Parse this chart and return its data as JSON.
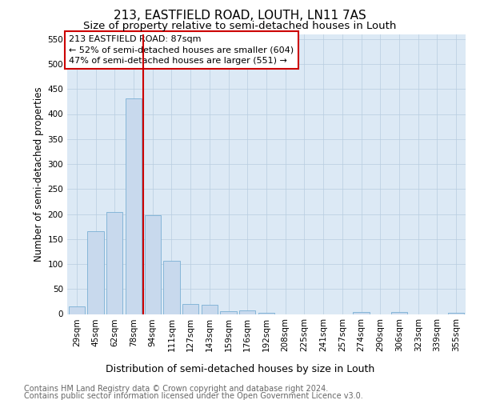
{
  "title": "213, EASTFIELD ROAD, LOUTH, LN11 7AS",
  "subtitle": "Size of property relative to semi-detached houses in Louth",
  "xlabel": "Distribution of semi-detached houses by size in Louth",
  "ylabel": "Number of semi-detached properties",
  "footnote1": "Contains HM Land Registry data © Crown copyright and database right 2024.",
  "footnote2": "Contains public sector information licensed under the Open Government Licence v3.0.",
  "annotation_title": "213 EASTFIELD ROAD: 87sqm",
  "annotation_line1": "← 52% of semi-detached houses are smaller (604)",
  "annotation_line2": "47% of semi-detached houses are larger (551) →",
  "bar_labels": [
    "29sqm",
    "45sqm",
    "62sqm",
    "78sqm",
    "94sqm",
    "111sqm",
    "127sqm",
    "143sqm",
    "159sqm",
    "176sqm",
    "192sqm",
    "208sqm",
    "225sqm",
    "241sqm",
    "257sqm",
    "274sqm",
    "290sqm",
    "306sqm",
    "323sqm",
    "339sqm",
    "355sqm"
  ],
  "bar_values": [
    15,
    165,
    204,
    432,
    197,
    106,
    20,
    18,
    5,
    7,
    2,
    0,
    0,
    0,
    0,
    4,
    0,
    4,
    0,
    0,
    3
  ],
  "bar_color": "#c8d9ed",
  "bar_edge_color": "#7aafd4",
  "vline_color": "#cc0000",
  "vline_x": 3.5,
  "ylim": [
    0,
    560
  ],
  "yticks": [
    0,
    50,
    100,
    150,
    200,
    250,
    300,
    350,
    400,
    450,
    500,
    550
  ],
  "ax_bg_color": "#dce9f5",
  "annotation_box_facecolor": "#ffffff",
  "annotation_box_edgecolor": "#cc0000",
  "background_color": "#ffffff",
  "grid_color": "#b8cde0",
  "title_fontsize": 11,
  "subtitle_fontsize": 9.5,
  "ylabel_fontsize": 8.5,
  "xlabel_fontsize": 9,
  "tick_fontsize": 7.5,
  "annotation_title_fontsize": 8.5,
  "annotation_body_fontsize": 8,
  "footnote_fontsize": 7
}
